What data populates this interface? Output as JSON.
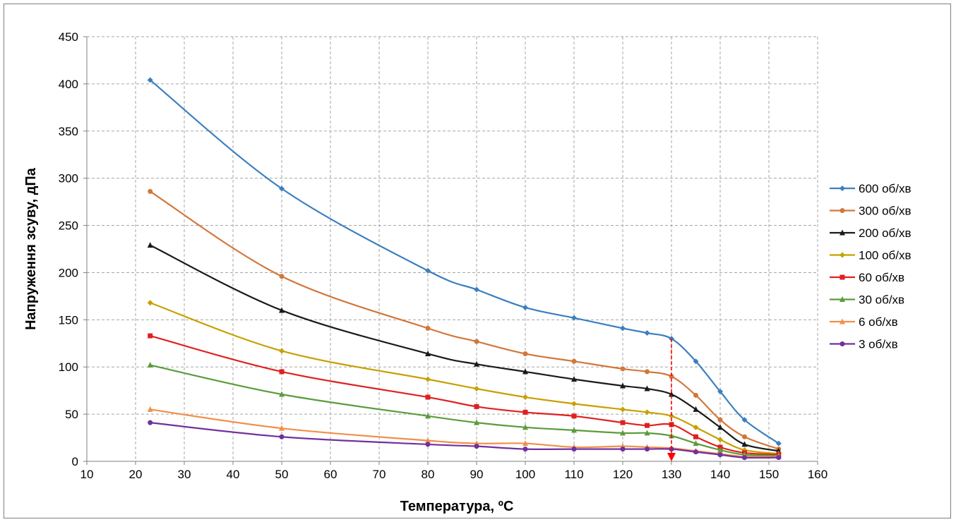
{
  "chart_data": {
    "type": "line",
    "title": "",
    "xlabel": "Температура, ºС",
    "ylabel": "Напруження зсуву, дПа",
    "xlim": [
      10,
      160
    ],
    "ylim": [
      0,
      450
    ],
    "x_ticks": [
      "10",
      "20",
      "30",
      "40",
      "50",
      "60",
      "70",
      "80",
      "90",
      "100",
      "110",
      "120",
      "130",
      "140",
      "150",
      "160"
    ],
    "y_ticks": [
      "0",
      "50",
      "100",
      "150",
      "200",
      "250",
      "300",
      "350",
      "400",
      "450"
    ],
    "grid": true,
    "legend_position": "right",
    "x": [
      23,
      50,
      80,
      90,
      100,
      110,
      120,
      125,
      130,
      135,
      140,
      145,
      152
    ],
    "series": [
      {
        "name": "600 об/хв",
        "color": "#3c7fbf",
        "marker": "diamond",
        "values": [
          404,
          289,
          202,
          182,
          163,
          152,
          141,
          136,
          130,
          106,
          74,
          44,
          19
        ]
      },
      {
        "name": "300 об/хв",
        "color": "#d2773a",
        "marker": "circle",
        "values": [
          286,
          196,
          141,
          127,
          114,
          106,
          98,
          95,
          90,
          70,
          44,
          26,
          13
        ]
      },
      {
        "name": "200 об/хв",
        "color": "#1a1a1a",
        "marker": "triangle",
        "values": [
          229,
          160,
          114,
          103,
          95,
          87,
          80,
          77,
          71,
          55,
          36,
          18,
          11
        ]
      },
      {
        "name": "100 об/хв",
        "color": "#c8a000",
        "marker": "diamond",
        "values": [
          168,
          117,
          87,
          77,
          68,
          61,
          55,
          52,
          48,
          36,
          23,
          12,
          8
        ]
      },
      {
        "name": "60 об/хв",
        "color": "#e02020",
        "marker": "square",
        "values": [
          133,
          95,
          68,
          58,
          52,
          48,
          41,
          38,
          39,
          26,
          15,
          9,
          7
        ]
      },
      {
        "name": "30 об/хв",
        "color": "#5b9c3c",
        "marker": "triangle",
        "values": [
          102,
          71,
          48,
          41,
          36,
          33,
          30,
          30,
          27,
          19,
          12,
          7,
          6
        ]
      },
      {
        "name": "6 об/хв",
        "color": "#f0904a",
        "marker": "triangle",
        "values": [
          55,
          35,
          22,
          19,
          19,
          15,
          16,
          15,
          14,
          11,
          8,
          5,
          5
        ]
      },
      {
        "name": "3 об/хв",
        "color": "#7030a0",
        "marker": "circle",
        "values": [
          41,
          26,
          18,
          16,
          13,
          13,
          13,
          13,
          13,
          10,
          7,
          4,
          4
        ]
      }
    ],
    "annotation": {
      "type": "dashed-arrow",
      "x": 130,
      "y_from": 130,
      "y_to": 0,
      "color": "#ff0000"
    }
  }
}
